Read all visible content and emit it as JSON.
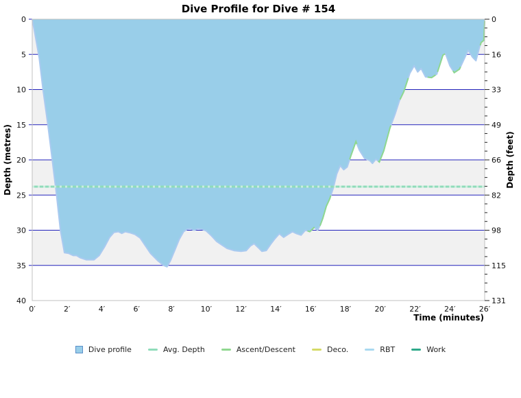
{
  "title": "Dive Profile for Dive # 154",
  "axes": {
    "left_label": "Depth (metres)",
    "right_label": "Depth (feet)",
    "bottom_label": "Time (minutes)",
    "left_ticks": [
      "0",
      "5",
      "10",
      "15",
      "20",
      "25",
      "30",
      "35",
      "40"
    ],
    "right_ticks": [
      "0",
      "16",
      "33",
      "49",
      "66",
      "82",
      "98",
      "115",
      "131"
    ],
    "x_ticks": [
      "0′",
      "2′",
      "4′",
      "6′",
      "8′",
      "10′",
      "12′",
      "14′",
      "16′",
      "18′",
      "20′",
      "22′",
      "24′",
      "26′"
    ]
  },
  "legend": [
    {
      "label": "Dive profile",
      "type": "square",
      "color": "#99cee9",
      "border": "#5b8fc9"
    },
    {
      "label": "Avg. Depth",
      "type": "line",
      "color": "#8fdcba"
    },
    {
      "label": "Ascent/Descent",
      "type": "line",
      "color": "#90d890"
    },
    {
      "label": "Deco.",
      "type": "line",
      "color": "#d5da67"
    },
    {
      "label": "RBT",
      "type": "line",
      "color": "#a9d9f0"
    },
    {
      "label": "Work",
      "type": "line",
      "color": "#2ea98a"
    }
  ],
  "colors": {
    "fill": "#99cee9",
    "edge": "#aacaf0",
    "ascent_line": "#8ed88e",
    "avg_line": "#8fdcba",
    "avg_line_dash": "#c9eedd",
    "gridline": "#2222bb",
    "band_gray": "#f1f1f1",
    "band_white": "#ffffff",
    "plot_border": "#c0c0c0",
    "tick_text": "#111111"
  },
  "chart_data": {
    "type": "area",
    "title": "Dive Profile for Dive # 154",
    "xlabel": "Time (minutes)",
    "ylabel_left": "Depth (metres)",
    "ylabel_right": "Depth (feet)",
    "xlim": [
      0,
      26
    ],
    "ylim_metres": [
      0,
      40
    ],
    "ylim_feet": [
      0,
      131
    ],
    "x_major_step_minutes": 2,
    "y_major_step_metres": 5,
    "grid": "horizontal-blue-every-5m",
    "alternating_bands_metres": 5,
    "avg_depth_m": 23.8,
    "max_depth_m": 35.2,
    "duration_min": 26,
    "series": [
      {
        "name": "Dive profile",
        "points_t_depth": [
          [
            0,
            0
          ],
          [
            0.15,
            2
          ],
          [
            0.4,
            5.5
          ],
          [
            0.62,
            10
          ],
          [
            0.9,
            15
          ],
          [
            1.15,
            20
          ],
          [
            1.4,
            25
          ],
          [
            1.62,
            30
          ],
          [
            1.85,
            33.2
          ],
          [
            2.1,
            33.3
          ],
          [
            2.35,
            33.6
          ],
          [
            2.55,
            33.6
          ],
          [
            2.75,
            33.9
          ],
          [
            3.1,
            34.2
          ],
          [
            3.55,
            34.2
          ],
          [
            3.85,
            33.6
          ],
          [
            4.15,
            32.4
          ],
          [
            4.45,
            31.0
          ],
          [
            4.7,
            30.3
          ],
          [
            4.95,
            30.2
          ],
          [
            5.15,
            30.45
          ],
          [
            5.35,
            30.2
          ],
          [
            5.6,
            30.35
          ],
          [
            5.9,
            30.6
          ],
          [
            6.2,
            31.1
          ],
          [
            6.5,
            32.2
          ],
          [
            6.8,
            33.3
          ],
          [
            7.2,
            34.3
          ],
          [
            7.55,
            35.0
          ],
          [
            7.75,
            35.2
          ],
          [
            7.95,
            34.3
          ],
          [
            8.2,
            32.8
          ],
          [
            8.45,
            31.3
          ],
          [
            8.7,
            30.2
          ],
          [
            8.9,
            29.85
          ],
          [
            9.1,
            29.8
          ],
          [
            9.3,
            30.0
          ],
          [
            9.5,
            29.8
          ],
          [
            9.75,
            29.85
          ],
          [
            10.0,
            30.1
          ],
          [
            10.3,
            30.8
          ],
          [
            10.6,
            31.6
          ],
          [
            10.9,
            32.1
          ],
          [
            11.2,
            32.6
          ],
          [
            11.6,
            32.9
          ],
          [
            12.0,
            33.0
          ],
          [
            12.3,
            32.9
          ],
          [
            12.55,
            32.2
          ],
          [
            12.75,
            31.9
          ],
          [
            13.0,
            32.5
          ],
          [
            13.2,
            33.0
          ],
          [
            13.45,
            32.9
          ],
          [
            13.7,
            32.0
          ],
          [
            13.95,
            31.2
          ],
          [
            14.2,
            30.5
          ],
          [
            14.45,
            31.0
          ],
          [
            14.7,
            30.6
          ],
          [
            14.95,
            30.2
          ],
          [
            15.2,
            30.5
          ],
          [
            15.45,
            30.7
          ],
          [
            15.7,
            30.0
          ],
          [
            15.95,
            30.2
          ],
          [
            16.2,
            29.6
          ],
          [
            16.4,
            30.0
          ],
          [
            16.55,
            29.3
          ],
          [
            16.7,
            28.3
          ],
          [
            16.9,
            26.6
          ],
          [
            17.1,
            25.5
          ],
          [
            17.3,
            24.0
          ],
          [
            17.5,
            22.0
          ],
          [
            17.7,
            20.8
          ],
          [
            17.9,
            21.4
          ],
          [
            18.1,
            21.0
          ],
          [
            18.3,
            19.5
          ],
          [
            18.6,
            17.4
          ],
          [
            18.8,
            18.6
          ],
          [
            19.1,
            19.8
          ],
          [
            19.4,
            20.1
          ],
          [
            19.55,
            20.5
          ],
          [
            19.75,
            19.9
          ],
          [
            19.95,
            20.3
          ],
          [
            20.2,
            18.7
          ],
          [
            20.55,
            15.5
          ],
          [
            20.85,
            13.5
          ],
          [
            21.1,
            11.6
          ],
          [
            21.35,
            10.3
          ],
          [
            21.7,
            7.7
          ],
          [
            21.95,
            6.6
          ],
          [
            22.15,
            7.5
          ],
          [
            22.35,
            7.0
          ],
          [
            22.6,
            8.2
          ],
          [
            22.95,
            8.3
          ],
          [
            23.25,
            7.8
          ],
          [
            23.6,
            5.1
          ],
          [
            23.75,
            4.9
          ],
          [
            24.0,
            6.6
          ],
          [
            24.25,
            7.6
          ],
          [
            24.55,
            7.1
          ],
          [
            24.85,
            5.5
          ],
          [
            25.05,
            4.4
          ],
          [
            25.3,
            5.4
          ],
          [
            25.5,
            5.9
          ],
          [
            25.7,
            4.0
          ],
          [
            25.8,
            3.3
          ],
          [
            25.95,
            3.0
          ],
          [
            26.0,
            0.3
          ]
        ]
      }
    ],
    "ascent_descent_segments_t": [
      [
        15.85,
        16.2
      ],
      [
        16.55,
        17.15
      ],
      [
        18.25,
        18.65
      ],
      [
        19.9,
        20.6
      ],
      [
        21.15,
        21.6
      ],
      [
        22.75,
        23.15
      ],
      [
        23.3,
        23.7
      ],
      [
        24.2,
        24.6
      ],
      [
        25.75,
        26.0
      ]
    ],
    "legend_position": "bottom-center"
  }
}
